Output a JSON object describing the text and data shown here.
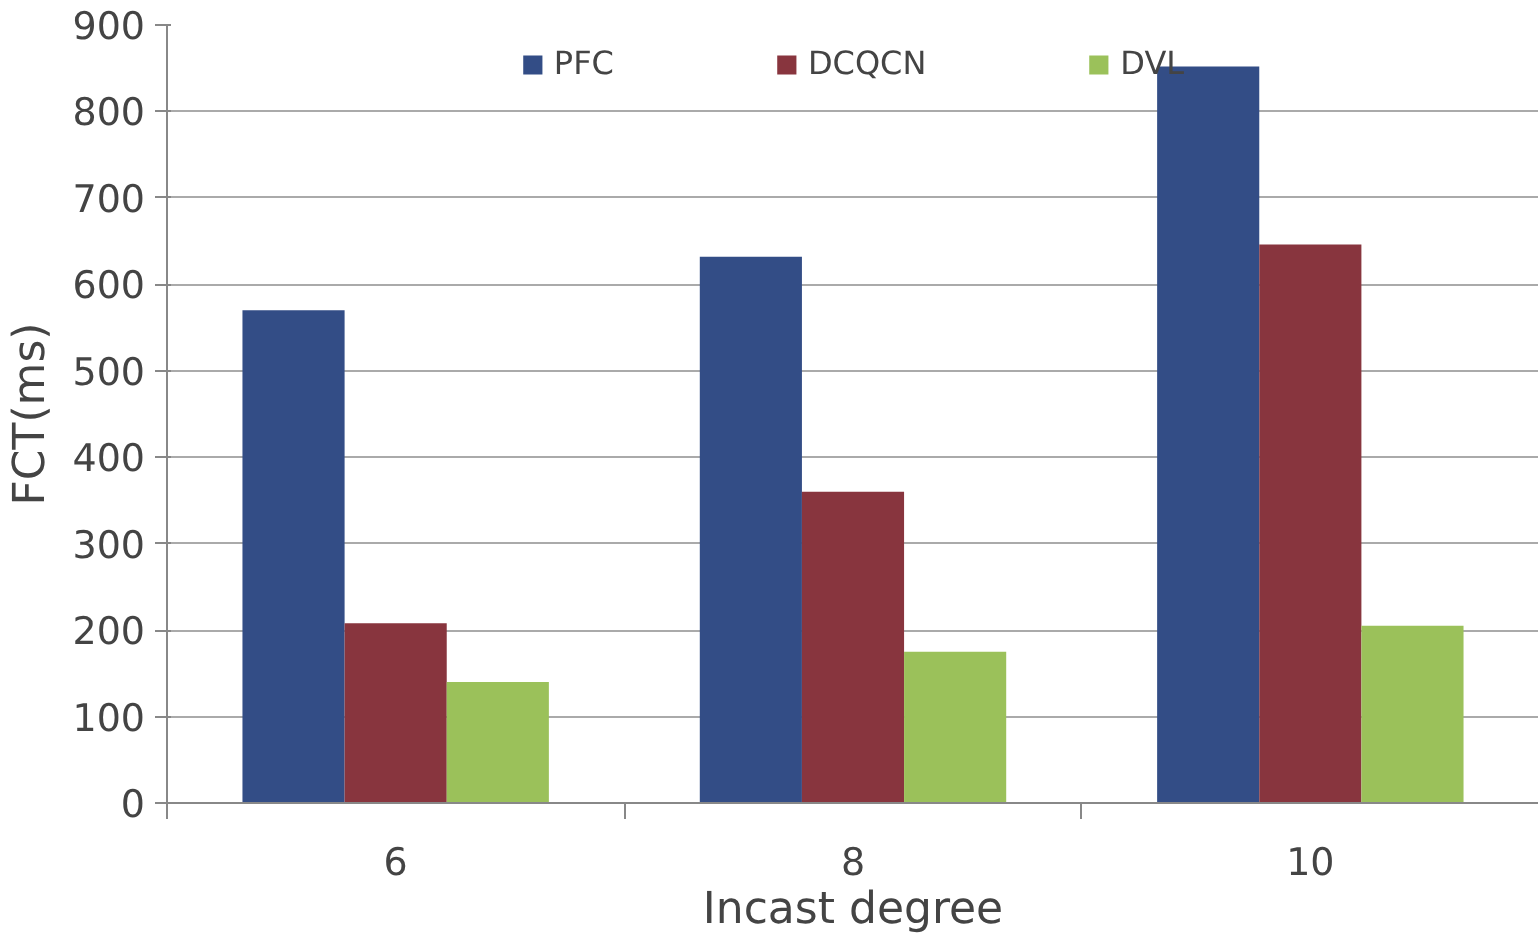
{
  "chart_data": {
    "type": "bar",
    "xlabel": "Incast degree",
    "ylabel": "FCT(ms)",
    "categories": [
      "6",
      "8",
      "10"
    ],
    "series": [
      {
        "name": "PFC",
        "color": "#334d86",
        "values": [
          570,
          632,
          852
        ]
      },
      {
        "name": "DCQCN",
        "color": "#88353e",
        "values": [
          208,
          360,
          646
        ]
      },
      {
        "name": "DVL",
        "color": "#9bc15a",
        "values": [
          140,
          175,
          205
        ]
      }
    ],
    "ylim": [
      0,
      900
    ],
    "yticks": [
      0,
      100,
      200,
      300,
      400,
      500,
      600,
      700,
      800,
      900
    ],
    "grid": "y",
    "legend": "top"
  }
}
